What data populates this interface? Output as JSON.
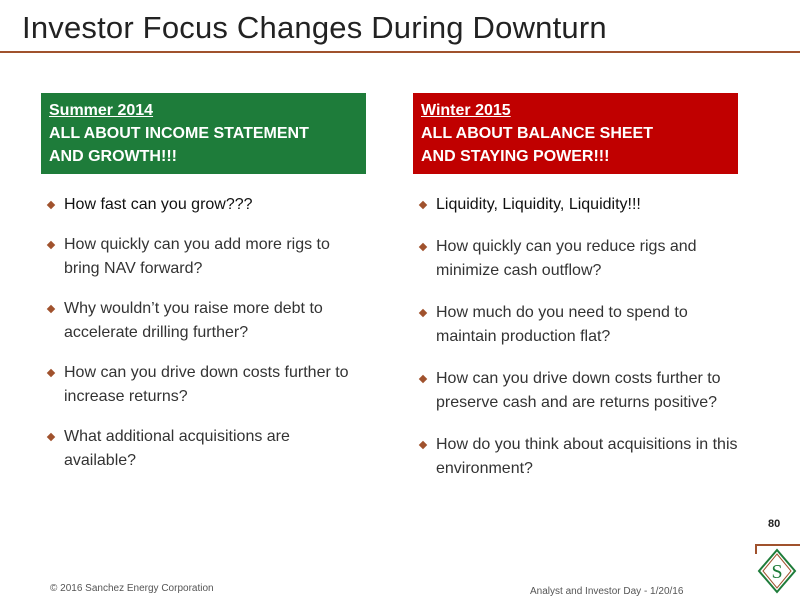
{
  "slide": {
    "title": "Investor Focus Changes During Downturn",
    "page_number": "80"
  },
  "left": {
    "season": "Summer 2014",
    "line1": "ALL ABOUT INCOME STATEMENT",
    "line2": "AND GROWTH!!!",
    "header_color": "#1e7c3a",
    "bullets": [
      "How fast can you grow???",
      "How quickly can you add more rigs to bring NAV forward?",
      "Why wouldn’t you raise more debt to accelerate drilling further?",
      "How can you drive down costs further to increase returns?",
      "What additional acquisitions are available?"
    ]
  },
  "right": {
    "season": "Winter 2015",
    "line1": "ALL ABOUT BALANCE SHEET",
    "line2": "AND STAYING POWER!!!",
    "header_color": "#c00000",
    "bullets": [
      "Liquidity, Liquidity, Liquidity!!!",
      "How quickly can you reduce rigs and minimize cash outflow?",
      "How much do you need to spend to maintain production flat?",
      "How can you drive down costs further to preserve cash and are returns positive?",
      "How do you think about acquisitions in this environment?"
    ]
  },
  "footer": {
    "copyright": "© 2016 Sanchez Energy Corporation",
    "event": "Analyst and Investor Day - 1/20/16",
    "logo_letter": "S"
  },
  "colors": {
    "accent": "#a0522d",
    "green": "#1e7c3a",
    "red": "#c00000"
  },
  "icons": {
    "bullet": "diamond-bullet-icon",
    "logo": "sanchez-logo-icon"
  }
}
